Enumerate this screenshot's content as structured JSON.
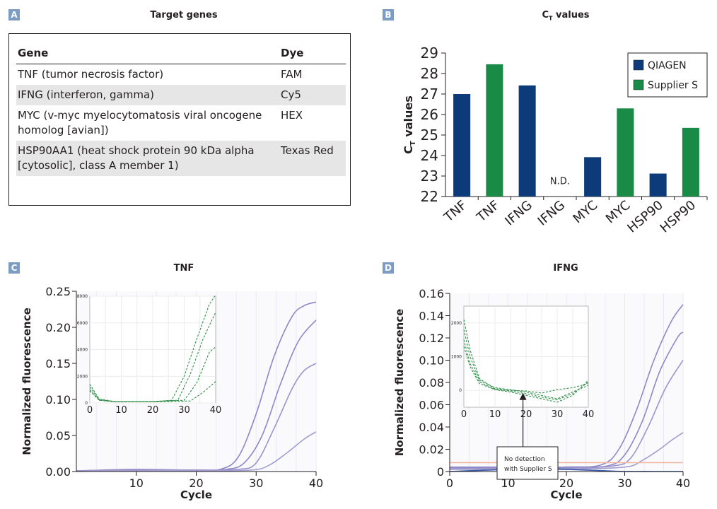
{
  "panels": {
    "a": {
      "label": "A",
      "title": "Target genes"
    },
    "b": {
      "label": "B",
      "title_main": "C",
      "title_sub": "T",
      "title_rest": " values"
    },
    "c": {
      "label": "C",
      "title": "TNF"
    },
    "d": {
      "label": "D",
      "title": "IFNG"
    }
  },
  "gene_table": {
    "headers": [
      "Gene",
      "Dye"
    ],
    "rows": [
      {
        "gene": "TNF (tumor necrosis factor)",
        "dye": "FAM",
        "shaded": false
      },
      {
        "gene": "IFNG (interferon, gamma)",
        "dye": "Cy5",
        "shaded": true
      },
      {
        "gene": "MYC (v-myc myelocytomatosis viral oncogene homolog [avian])",
        "dye": "HEX",
        "shaded": false
      },
      {
        "gene": "HSP90AA1 (heat shock protein 90 kDa alpha [cytosolic], class A member 1)",
        "dye": "Texas Red",
        "shaded": true
      }
    ]
  },
  "chart_data": [
    {
      "type": "bar",
      "ylabel_main": "C",
      "ylabel_sub": "T",
      "ylabel_rest": " values",
      "categories": [
        "TNF",
        "TNF",
        "IFNG",
        "IFNG",
        "MYC",
        "MYC",
        "HSP90",
        "HSP90"
      ],
      "values": [
        27.0,
        28.45,
        27.42,
        null,
        23.92,
        26.3,
        23.12,
        25.35
      ],
      "bar_series": [
        "QIAGEN",
        "Supplier S",
        "QIAGEN",
        "Supplier S",
        "QIAGEN",
        "Supplier S",
        "QIAGEN",
        "Supplier S"
      ],
      "annotations": [
        {
          "category_index": 3,
          "text": "N.D."
        }
      ],
      "series": [
        {
          "name": "QIAGEN",
          "color": "#0d3b7a"
        },
        {
          "name": "Supplier S",
          "color": "#1a8a47"
        }
      ],
      "ylim": [
        22,
        29
      ],
      "yticks": [
        22,
        23,
        24,
        25,
        26,
        27,
        28,
        29
      ],
      "legend": "top-right"
    },
    {
      "type": "line",
      "xlabel": "Cycle",
      "ylabel": "Normalized fluorescence",
      "xlim": [
        0,
        40
      ],
      "ylim": [
        0,
        0.25
      ],
      "xticks": [
        10,
        20,
        30,
        40
      ],
      "yticks": [
        0.0,
        0.05,
        0.1,
        0.15,
        0.2,
        0.25
      ],
      "ytick_labels": [
        "0.00",
        "0.05",
        "0.10",
        "0.15",
        "0.20",
        "0.25"
      ],
      "series": [
        {
          "color": "#8e87c6",
          "x": [
            0,
            10,
            20,
            24,
            27,
            30,
            33,
            36,
            38,
            40
          ],
          "y": [
            0.001,
            0.003,
            0.002,
            0.003,
            0.02,
            0.08,
            0.16,
            0.215,
            0.23,
            0.235
          ]
        },
        {
          "color": "#8e87c6",
          "x": [
            0,
            10,
            20,
            25,
            28,
            31,
            34,
            37,
            40
          ],
          "y": [
            0.001,
            0.002,
            0.002,
            0.003,
            0.012,
            0.05,
            0.12,
            0.18,
            0.21
          ]
        },
        {
          "color": "#9a94cc",
          "x": [
            0,
            10,
            20,
            27,
            30,
            33,
            36,
            38,
            40
          ],
          "y": [
            0.001,
            0.002,
            0.002,
            0.003,
            0.012,
            0.06,
            0.115,
            0.14,
            0.15
          ]
        },
        {
          "color": "#a39ed2",
          "x": [
            0,
            10,
            20,
            29,
            32,
            35,
            38,
            40
          ],
          "y": [
            0.0,
            0.001,
            0.001,
            0.002,
            0.008,
            0.025,
            0.045,
            0.055
          ]
        }
      ],
      "inset": {
        "xlim": [
          0,
          40
        ],
        "ylim": [
          0,
          8000
        ],
        "xticks": [
          0,
          10,
          20,
          30,
          40
        ],
        "yticks": [
          0,
          2000,
          4000,
          6000,
          8000
        ],
        "series": [
          {
            "x": [
              0,
              3,
              8,
              20,
              26,
              30,
              34,
              38,
              40
            ],
            "y": [
              1400,
              300,
              100,
              100,
              200,
              2000,
              4800,
              7400,
              8100
            ]
          },
          {
            "x": [
              0,
              3,
              8,
              20,
              28,
              32,
              36,
              40
            ],
            "y": [
              1200,
              250,
              100,
              100,
              200,
              2200,
              4800,
              6800
            ]
          },
          {
            "x": [
              0,
              3,
              8,
              20,
              30,
              34,
              38,
              40
            ],
            "y": [
              1000,
              200,
              100,
              100,
              200,
              1500,
              3800,
              4200
            ]
          },
          {
            "x": [
              0,
              3,
              8,
              20,
              32,
              36,
              40
            ],
            "y": [
              900,
              200,
              80,
              80,
              150,
              800,
              1600
            ]
          }
        ]
      }
    },
    {
      "type": "line",
      "xlabel": "Cycle",
      "ylabel": "Normalized fluorescence",
      "xlim": [
        0,
        40
      ],
      "ylim": [
        0,
        0.16
      ],
      "xticks": [
        0,
        10,
        20,
        30,
        40
      ],
      "yticks": [
        0,
        0.02,
        0.04,
        0.06,
        0.08,
        0.1,
        0.12,
        0.14,
        0.16
      ],
      "ytick_labels": [
        "0",
        "0.02",
        "0.04",
        "0.06",
        "0.08",
        "0.10",
        "0.12",
        "0.14",
        "0.16"
      ],
      "series": [
        {
          "color": "#8e87c6",
          "x": [
            0,
            10,
            20,
            26,
            29,
            32,
            35,
            38,
            40
          ],
          "y": [
            0.004,
            0.004,
            0.004,
            0.006,
            0.02,
            0.055,
            0.1,
            0.135,
            0.15
          ]
        },
        {
          "color": "#8e87c6",
          "x": [
            0,
            10,
            20,
            27,
            30,
            33,
            36,
            39,
            40
          ],
          "y": [
            0.003,
            0.003,
            0.004,
            0.005,
            0.015,
            0.045,
            0.09,
            0.12,
            0.125
          ]
        },
        {
          "color": "#9a94cc",
          "x": [
            0,
            10,
            20,
            28,
            31,
            34,
            37,
            40
          ],
          "y": [
            0.003,
            0.003,
            0.003,
            0.005,
            0.012,
            0.04,
            0.075,
            0.1
          ]
        },
        {
          "color": "#a39ed2",
          "x": [
            0,
            10,
            20,
            30,
            33,
            36,
            38,
            40
          ],
          "y": [
            0.002,
            0.002,
            0.002,
            0.004,
            0.01,
            0.02,
            0.028,
            0.035
          ]
        },
        {
          "color": "#f0b7a0",
          "x": [
            0,
            40
          ],
          "y": [
            0.008,
            0.008
          ]
        },
        {
          "color": "#3a59a8",
          "x": [
            0,
            5,
            10,
            15,
            20,
            25,
            30,
            35,
            40
          ],
          "y": [
            0.0,
            0.001,
            0.002,
            0.003,
            0.002,
            0.001,
            0.0,
            0.0,
            0.0
          ]
        }
      ],
      "inset": {
        "xlim": [
          0,
          40
        ],
        "ylim": [
          -500,
          2500
        ],
        "xticks": [
          0,
          10,
          20,
          30,
          40
        ],
        "yticks": [
          0,
          1000,
          2000
        ],
        "series": [
          {
            "x": [
              0,
              2,
              5,
              10,
              15,
              20,
              25,
              30,
              35,
              40
            ],
            "y": [
              2100,
              1200,
              350,
              50,
              0,
              -20,
              -80,
              20,
              80,
              200
            ]
          },
          {
            "x": [
              0,
              2,
              5,
              10,
              15,
              20,
              25,
              30,
              35,
              40
            ],
            "y": [
              1800,
              1000,
              300,
              80,
              20,
              -50,
              -150,
              -250,
              -50,
              150
            ]
          },
          {
            "x": [
              0,
              2,
              5,
              10,
              15,
              20,
              25,
              30,
              35,
              40
            ],
            "y": [
              1500,
              800,
              250,
              30,
              -20,
              -100,
              -200,
              -280,
              -100,
              250
            ]
          },
          {
            "x": [
              0,
              2,
              5,
              10,
              15,
              20,
              25,
              30,
              35,
              40
            ],
            "y": [
              1300,
              700,
              200,
              20,
              -50,
              -150,
              -250,
              -350,
              -150,
              300
            ]
          }
        ],
        "callout": "No detection with Supplier S",
        "arrow_x": 19
      }
    }
  ]
}
